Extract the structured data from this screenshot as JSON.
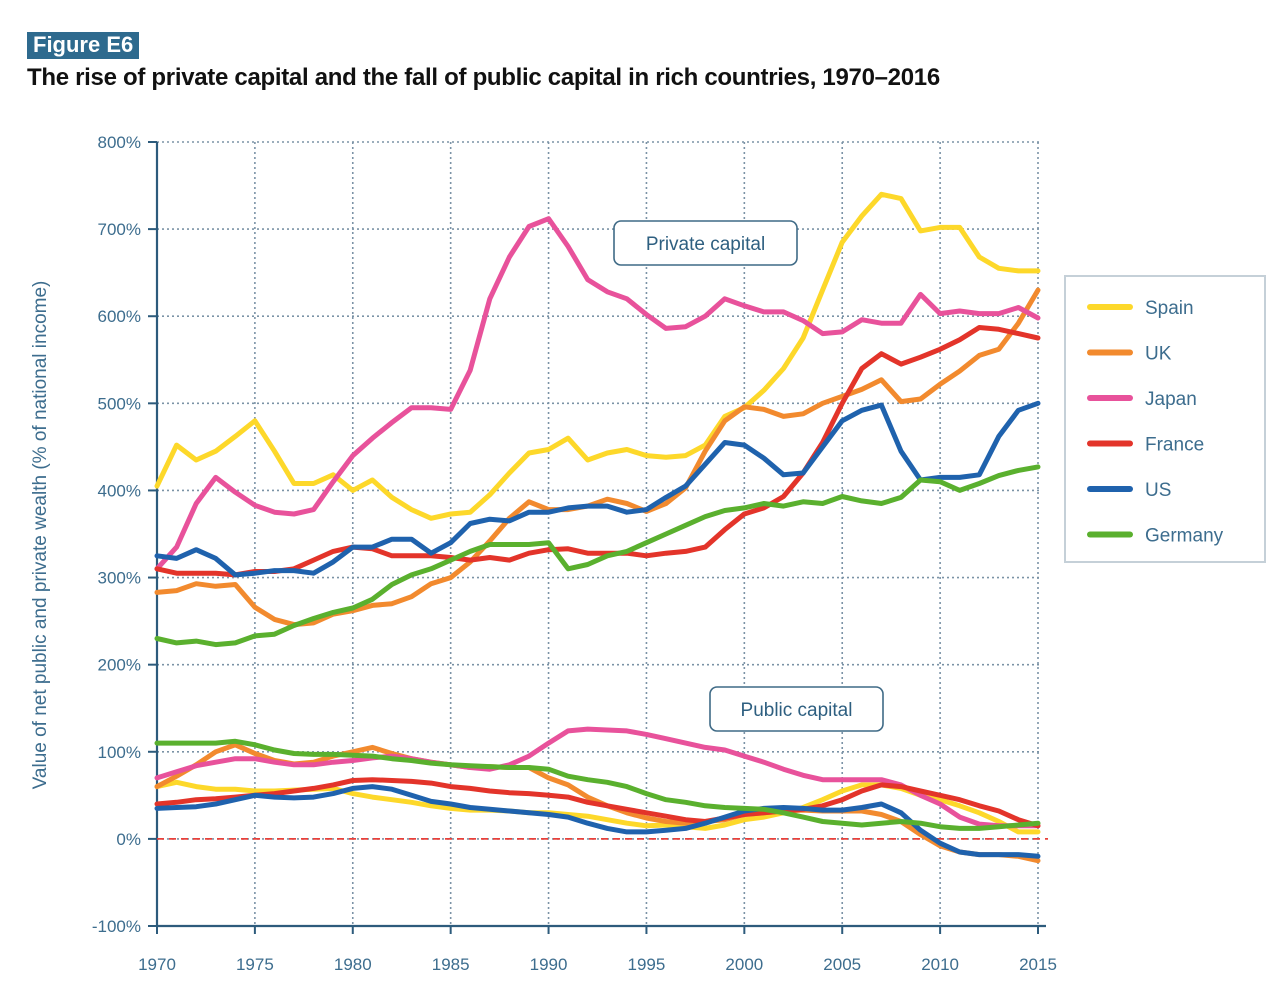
{
  "figure_badge": "Figure E6",
  "title": "The rise of private capital and the fall of public capital in rich countries, 1970–2016",
  "chart_data": {
    "type": "line",
    "title": "The rise of private capital and the fall of public capital in rich countries, 1970–2016",
    "xlabel": "",
    "ylabel": "Value of net public and private wealth (% of national income)",
    "xlim": [
      1970,
      2015
    ],
    "ylim": [
      -100,
      800
    ],
    "xticks": [
      1970,
      1975,
      1980,
      1985,
      1990,
      1995,
      2000,
      2005,
      2010,
      2015
    ],
    "xtick_labels": [
      "1970",
      "1975",
      "1980",
      "1985",
      "1990",
      "1995",
      "2000",
      "2005",
      "2010",
      "2015"
    ],
    "yticks": [
      -100,
      0,
      100,
      200,
      300,
      400,
      500,
      600,
      700,
      800
    ],
    "ytick_labels": [
      "-100%",
      "0%",
      "100%",
      "200%",
      "300%",
      "400%",
      "500%",
      "600%",
      "700%",
      "800%"
    ],
    "grid": true,
    "legend_position": "right",
    "reference_line": {
      "y": 0,
      "color": "#e8403a",
      "style": "dashed"
    },
    "annotations": [
      {
        "text": "Private capital",
        "x": 1993,
        "y": 688
      },
      {
        "text": "Public capital",
        "x": 1996,
        "y": 150
      }
    ],
    "x": [
      1970,
      1971,
      1972,
      1973,
      1974,
      1975,
      1976,
      1977,
      1978,
      1979,
      1980,
      1981,
      1982,
      1983,
      1984,
      1985,
      1986,
      1987,
      1988,
      1989,
      1990,
      1991,
      1992,
      1993,
      1994,
      1995,
      1996,
      1997,
      1998,
      1999,
      2000,
      2001,
      2002,
      2003,
      2004,
      2005,
      2006,
      2007,
      2008,
      2009,
      2010,
      2011,
      2012,
      2013,
      2014,
      2015
    ],
    "series": [
      {
        "name": "Spain",
        "group": "private",
        "color": "#fdd82a",
        "values": [
          405,
          452,
          435,
          445,
          462,
          480,
          445,
          408,
          408,
          418,
          400,
          412,
          392,
          378,
          368,
          373,
          375,
          395,
          420,
          443,
          447,
          460,
          435,
          443,
          447,
          440,
          438,
          440,
          452,
          485,
          495,
          515,
          540,
          575,
          630,
          685,
          715,
          740,
          735,
          698,
          702,
          702,
          668,
          655,
          652,
          652
        ]
      },
      {
        "name": "UK",
        "group": "private",
        "color": "#f28a2e",
        "values": [
          283,
          285,
          293,
          290,
          292,
          266,
          252,
          246,
          248,
          258,
          262,
          268,
          270,
          278,
          293,
          300,
          318,
          342,
          368,
          387,
          378,
          378,
          382,
          390,
          385,
          376,
          385,
          403,
          445,
          480,
          496,
          493,
          485,
          488,
          500,
          508,
          516,
          527,
          502,
          505,
          522,
          537,
          555,
          562,
          592,
          630
        ]
      },
      {
        "name": "Japan",
        "group": "private",
        "color": "#e8529b",
        "values": [
          310,
          335,
          385,
          415,
          398,
          383,
          375,
          373,
          378,
          410,
          440,
          460,
          478,
          495,
          495,
          493,
          538,
          620,
          668,
          703,
          712,
          680,
          642,
          628,
          620,
          602,
          586,
          588,
          600,
          620,
          612,
          605,
          605,
          595,
          580,
          582,
          596,
          592,
          592,
          625,
          603,
          606,
          603,
          603,
          610,
          598
        ]
      },
      {
        "name": "France",
        "group": "private",
        "color": "#e3342a",
        "values": [
          310,
          305,
          305,
          305,
          303,
          307,
          307,
          310,
          320,
          330,
          335,
          333,
          325,
          325,
          325,
          323,
          320,
          323,
          320,
          328,
          332,
          333,
          328,
          328,
          328,
          325,
          328,
          330,
          335,
          355,
          373,
          380,
          393,
          420,
          455,
          500,
          540,
          557,
          545,
          553,
          562,
          573,
          587,
          585,
          580,
          575
        ]
      },
      {
        "name": "US",
        "group": "private",
        "color": "#1f62ad",
        "values": [
          325,
          322,
          332,
          322,
          303,
          305,
          308,
          308,
          305,
          318,
          335,
          335,
          344,
          344,
          328,
          340,
          362,
          367,
          365,
          375,
          375,
          380,
          382,
          382,
          375,
          378,
          392,
          405,
          430,
          455,
          452,
          437,
          418,
          420,
          450,
          480,
          492,
          498,
          445,
          412,
          415,
          415,
          418,
          462,
          492,
          500
        ]
      },
      {
        "name": "Germany",
        "group": "private",
        "color": "#5ab02e",
        "values": [
          230,
          225,
          227,
          223,
          225,
          233,
          235,
          245,
          253,
          260,
          265,
          275,
          292,
          303,
          310,
          320,
          330,
          338,
          338,
          338,
          340,
          310,
          315,
          325,
          330,
          340,
          350,
          360,
          370,
          377,
          380,
          385,
          382,
          387,
          385,
          393,
          388,
          385,
          392,
          412,
          410,
          400,
          408,
          417,
          423,
          427
        ]
      },
      {
        "name": "Spain",
        "group": "public",
        "color": "#fdd82a",
        "values": [
          60,
          65,
          60,
          57,
          57,
          55,
          55,
          56,
          57,
          58,
          52,
          48,
          45,
          42,
          38,
          35,
          33,
          33,
          32,
          30,
          30,
          28,
          26,
          22,
          18,
          15,
          16,
          14,
          12,
          16,
          22,
          25,
          30,
          36,
          45,
          55,
          62,
          62,
          58,
          50,
          45,
          38,
          30,
          20,
          8,
          8
        ]
      },
      {
        "name": "UK",
        "group": "public",
        "color": "#f28a2e",
        "values": [
          60,
          72,
          85,
          100,
          108,
          98,
          90,
          86,
          88,
          95,
          100,
          105,
          98,
          92,
          88,
          85,
          82,
          83,
          82,
          82,
          70,
          62,
          48,
          38,
          30,
          24,
          20,
          18,
          20,
          22,
          28,
          30,
          32,
          33,
          32,
          32,
          32,
          28,
          20,
          5,
          -8,
          -15,
          -18,
          -18,
          -20,
          -25
        ]
      },
      {
        "name": "Japan",
        "group": "public",
        "color": "#e8529b",
        "values": [
          70,
          77,
          84,
          88,
          92,
          92,
          88,
          85,
          85,
          88,
          90,
          93,
          95,
          92,
          88,
          85,
          82,
          80,
          85,
          95,
          110,
          124,
          126,
          125,
          124,
          120,
          115,
          110,
          105,
          102,
          95,
          88,
          80,
          73,
          68,
          68,
          68,
          68,
          62,
          50,
          40,
          25,
          17,
          15,
          15,
          15
        ]
      },
      {
        "name": "France",
        "group": "public",
        "color": "#e3342a",
        "values": [
          40,
          42,
          45,
          46,
          48,
          50,
          52,
          55,
          58,
          62,
          67,
          68,
          67,
          66,
          64,
          60,
          58,
          55,
          53,
          52,
          50,
          48,
          42,
          38,
          34,
          30,
          26,
          22,
          20,
          24,
          28,
          30,
          32,
          34,
          38,
          45,
          55,
          62,
          60,
          55,
          50,
          45,
          38,
          32,
          22,
          15
        ]
      },
      {
        "name": "US",
        "group": "public",
        "color": "#1f62ad",
        "values": [
          35,
          36,
          37,
          40,
          45,
          50,
          48,
          47,
          48,
          52,
          58,
          60,
          57,
          50,
          43,
          40,
          36,
          34,
          32,
          30,
          28,
          25,
          18,
          12,
          8,
          8,
          10,
          12,
          18,
          25,
          32,
          35,
          36,
          35,
          33,
          33,
          36,
          40,
          30,
          10,
          -5,
          -15,
          -18,
          -18,
          -18,
          -20
        ]
      },
      {
        "name": "Germany",
        "group": "public",
        "color": "#5ab02e",
        "values": [
          110,
          110,
          110,
          110,
          112,
          108,
          102,
          98,
          97,
          97,
          96,
          95,
          92,
          90,
          87,
          85,
          84,
          83,
          82,
          82,
          80,
          72,
          68,
          65,
          60,
          52,
          45,
          42,
          38,
          36,
          35,
          34,
          30,
          25,
          20,
          18,
          16,
          18,
          20,
          18,
          14,
          12,
          12,
          14,
          16,
          18
        ]
      }
    ]
  },
  "legend": {
    "items": [
      {
        "label": "Spain",
        "color": "#fdd82a"
      },
      {
        "label": "UK",
        "color": "#f28a2e"
      },
      {
        "label": "Japan",
        "color": "#e8529b"
      },
      {
        "label": "France",
        "color": "#e3342a"
      },
      {
        "label": "US",
        "color": "#1f62ad"
      },
      {
        "label": "Germany",
        "color": "#5ab02e"
      }
    ]
  }
}
